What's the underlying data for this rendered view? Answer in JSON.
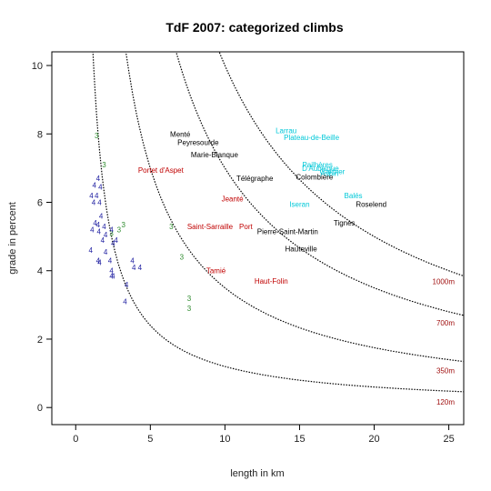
{
  "chart_data": {
    "type": "scatter",
    "title": "TdF 2007: categorized climbs",
    "xlabel": "length in km",
    "ylabel": "grade in percent",
    "xlim": [
      -1.6,
      26
    ],
    "ylim": [
      -0.5,
      10.4
    ],
    "x_ticks": [
      0,
      5,
      10,
      15,
      20,
      25
    ],
    "y_ticks": [
      0,
      2,
      4,
      6,
      8,
      10
    ],
    "grid": false,
    "colors": {
      "hc": "#00c8d8",
      "cat1": "#000000",
      "cat2": "#c00000",
      "cat3": "#2e8b2e",
      "cat4": "#1c1ca0",
      "curve": "#000000",
      "curve_label": "#a01010"
    },
    "curves": [
      {
        "label": "120m",
        "height_m": 120
      },
      {
        "label": "350m",
        "height_m": 350
      },
      {
        "label": "700m",
        "height_m": 700
      },
      {
        "label": "1000m",
        "height_m": 1000
      }
    ],
    "series": [
      {
        "category": "hc",
        "points": [
          {
            "label": "Larrau",
            "x": 14.1,
            "y": 8.1
          },
          {
            "label": "Plateau-de-Beille",
            "x": 15.8,
            "y": 7.9
          },
          {
            "label": "Pailhères",
            "x": 16.2,
            "y": 7.1
          },
          {
            "label": "D'Aubisque",
            "x": 16.4,
            "y": 7.0
          },
          {
            "label": "Aspin",
            "x": 17.0,
            "y": 6.85
          },
          {
            "label": "Galibier",
            "x": 17.2,
            "y": 6.9
          },
          {
            "label": "Balés",
            "x": 18.6,
            "y": 6.2
          },
          {
            "label": "Iseran",
            "x": 15.0,
            "y": 5.95
          }
        ]
      },
      {
        "category": "cat1",
        "points": [
          {
            "label": "Menté",
            "x": 7.0,
            "y": 8.0
          },
          {
            "label": "Peyresourde",
            "x": 8.2,
            "y": 7.75
          },
          {
            "label": "Marie-Blanque",
            "x": 9.3,
            "y": 7.4
          },
          {
            "label": "Télégraphe",
            "x": 12.0,
            "y": 6.7
          },
          {
            "label": "Colombière",
            "x": 16.0,
            "y": 6.75
          },
          {
            "label": "Roselend",
            "x": 19.8,
            "y": 5.95
          },
          {
            "label": "Tignes",
            "x": 18.0,
            "y": 5.4
          },
          {
            "label": "Pierre-Saint-Martin",
            "x": 14.2,
            "y": 5.15
          },
          {
            "label": "Hauteville",
            "x": 15.1,
            "y": 4.65
          }
        ]
      },
      {
        "category": "cat2",
        "points": [
          {
            "label": "Portet d'Aspet",
            "x": 5.7,
            "y": 6.95
          },
          {
            "label": "Jeanté",
            "x": 10.5,
            "y": 6.1
          },
          {
            "label": "Saint-Sarraille",
            "x": 9.0,
            "y": 5.3
          },
          {
            "label": "Port",
            "x": 11.4,
            "y": 5.3
          },
          {
            "label": "Tamié",
            "x": 9.4,
            "y": 4.0
          },
          {
            "label": "Haut-Folin",
            "x": 13.1,
            "y": 3.7
          }
        ]
      },
      {
        "category": "cat3",
        "points": [
          {
            "label": "3",
            "x": 1.4,
            "y": 7.95
          },
          {
            "label": "3",
            "x": 1.9,
            "y": 7.1
          },
          {
            "label": "3",
            "x": 2.4,
            "y": 5.1
          },
          {
            "label": "3",
            "x": 3.2,
            "y": 5.35
          },
          {
            "label": "3",
            "x": 2.9,
            "y": 5.2
          },
          {
            "label": "3",
            "x": 6.4,
            "y": 5.3
          },
          {
            "label": "3",
            "x": 7.1,
            "y": 4.4
          },
          {
            "label": "3",
            "x": 7.6,
            "y": 3.2
          },
          {
            "label": "3",
            "x": 7.6,
            "y": 2.9
          }
        ]
      },
      {
        "category": "cat4",
        "points": [
          {
            "label": "4",
            "x": 1.5,
            "y": 6.7
          },
          {
            "label": "4",
            "x": 1.25,
            "y": 6.5
          },
          {
            "label": "4",
            "x": 1.65,
            "y": 6.45
          },
          {
            "label": "4",
            "x": 1.05,
            "y": 6.2
          },
          {
            "label": "4",
            "x": 1.4,
            "y": 6.2
          },
          {
            "label": "4",
            "x": 1.2,
            "y": 6.0
          },
          {
            "label": "4",
            "x": 1.6,
            "y": 6.0
          },
          {
            "label": "4",
            "x": 1.7,
            "y": 5.6
          },
          {
            "label": "4",
            "x": 1.3,
            "y": 5.4
          },
          {
            "label": "4",
            "x": 1.5,
            "y": 5.35
          },
          {
            "label": "4",
            "x": 1.1,
            "y": 5.2
          },
          {
            "label": "4",
            "x": 1.9,
            "y": 5.3
          },
          {
            "label": "4",
            "x": 1.55,
            "y": 5.15
          },
          {
            "label": "4",
            "x": 2.4,
            "y": 5.2
          },
          {
            "label": "4",
            "x": 2.0,
            "y": 5.05
          },
          {
            "label": "4",
            "x": 1.8,
            "y": 4.9
          },
          {
            "label": "4",
            "x": 2.7,
            "y": 4.9
          },
          {
            "label": "4",
            "x": 2.5,
            "y": 4.8
          },
          {
            "label": "4",
            "x": 1.0,
            "y": 4.6
          },
          {
            "label": "4",
            "x": 2.0,
            "y": 4.55
          },
          {
            "label": "4",
            "x": 1.5,
            "y": 4.3
          },
          {
            "label": "4",
            "x": 1.6,
            "y": 4.25
          },
          {
            "label": "4",
            "x": 2.3,
            "y": 4.3
          },
          {
            "label": "4",
            "x": 3.8,
            "y": 4.3
          },
          {
            "label": "4",
            "x": 2.4,
            "y": 4.0
          },
          {
            "label": "4",
            "x": 3.9,
            "y": 4.1
          },
          {
            "label": "4",
            "x": 4.3,
            "y": 4.1
          },
          {
            "label": "4",
            "x": 2.4,
            "y": 3.85
          },
          {
            "label": "4",
            "x": 2.5,
            "y": 3.85
          },
          {
            "label": "4",
            "x": 3.4,
            "y": 3.6
          },
          {
            "label": "4",
            "x": 3.3,
            "y": 3.1
          }
        ]
      }
    ]
  }
}
